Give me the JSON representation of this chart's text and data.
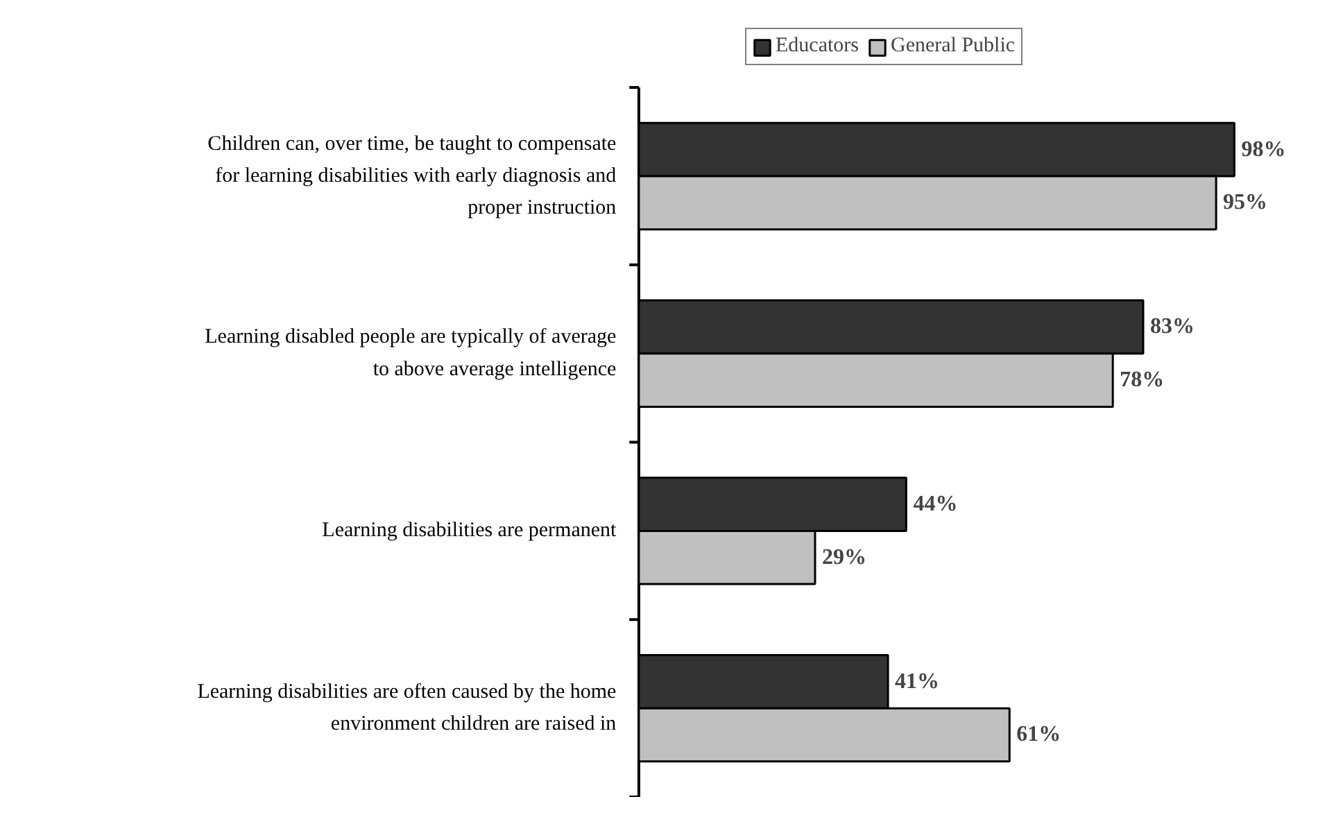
{
  "chart_data": {
    "type": "bar",
    "orientation": "horizontal",
    "categories": [
      "Children can, over time, be taught to compensate for learning disabilities with early diagnosis and proper instruction",
      "Learning disabled people are typically of average to above average intelligence",
      "Learning disabilities are permanent",
      "Learning disabilities are often caused by the home environment children are raised in"
    ],
    "series": [
      {
        "name": "Educators",
        "color": "#333333",
        "values": [
          98,
          83,
          44,
          41
        ],
        "value_labels": [
          "98%",
          "83%",
          "44%",
          "41%"
        ]
      },
      {
        "name": "General Public",
        "color": "#c0c0c0",
        "values": [
          95,
          78,
          29,
          61
        ],
        "value_labels": [
          "95%",
          "78%",
          "29%",
          "61%"
        ]
      }
    ],
    "legend": "top",
    "tick_labels": "y",
    "grid": false
  }
}
